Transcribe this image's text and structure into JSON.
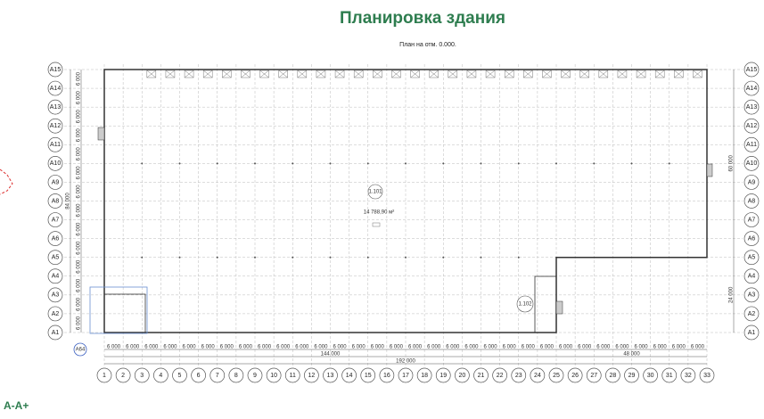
{
  "header": {
    "title": "Планировка здания",
    "subtitle": "План на отм. 0.000."
  },
  "grid": {
    "rows": [
      "A1",
      "A2",
      "A3",
      "A4",
      "A5",
      "A6",
      "A7",
      "A8",
      "A9",
      "A10",
      "A11",
      "A12",
      "A13",
      "A14",
      "A15"
    ],
    "columns": [
      "1",
      "2",
      "3",
      "4",
      "5",
      "6",
      "7",
      "8",
      "9",
      "10",
      "11",
      "12",
      "13",
      "14",
      "15",
      "16",
      "17",
      "18",
      "19",
      "20",
      "21",
      "22",
      "23",
      "24",
      "25",
      "26",
      "27",
      "28",
      "29",
      "30",
      "31",
      "32",
      "33"
    ]
  },
  "dimensions": {
    "column_spacing": [
      "6 000",
      "6 000",
      "6 000",
      "6 000",
      "6 000",
      "6 000",
      "6 000",
      "6 000",
      "6 000",
      "6 000",
      "6 000",
      "6 000",
      "6 000",
      "6 000",
      "6 000",
      "6 000",
      "6 000",
      "6 000",
      "6 000",
      "6 000",
      "6 000",
      "6 000",
      "6 000",
      "6 000",
      "6 000",
      "6 000",
      "6 000",
      "6 000",
      "6 000",
      "6 000",
      "6 000",
      "6 000"
    ],
    "row_spacing": [
      "6 000",
      "6 000",
      "6 000",
      "6 000",
      "6 000",
      "6 000",
      "6 000",
      "6 000",
      "6 000",
      "6 000",
      "6 000",
      "6 000",
      "6 000",
      "6 000"
    ],
    "left_span": "144 000",
    "right_span": "48 000",
    "total_span": "192 000",
    "total_height": "84 000",
    "upper_height": "60 000",
    "lower_height": "24 000"
  },
  "rooms": [
    {
      "id": "1.101",
      "area": "14 788,90 м²"
    },
    {
      "id": "1.102"
    }
  ],
  "callout": "A64",
  "section_label": "A-A+"
}
